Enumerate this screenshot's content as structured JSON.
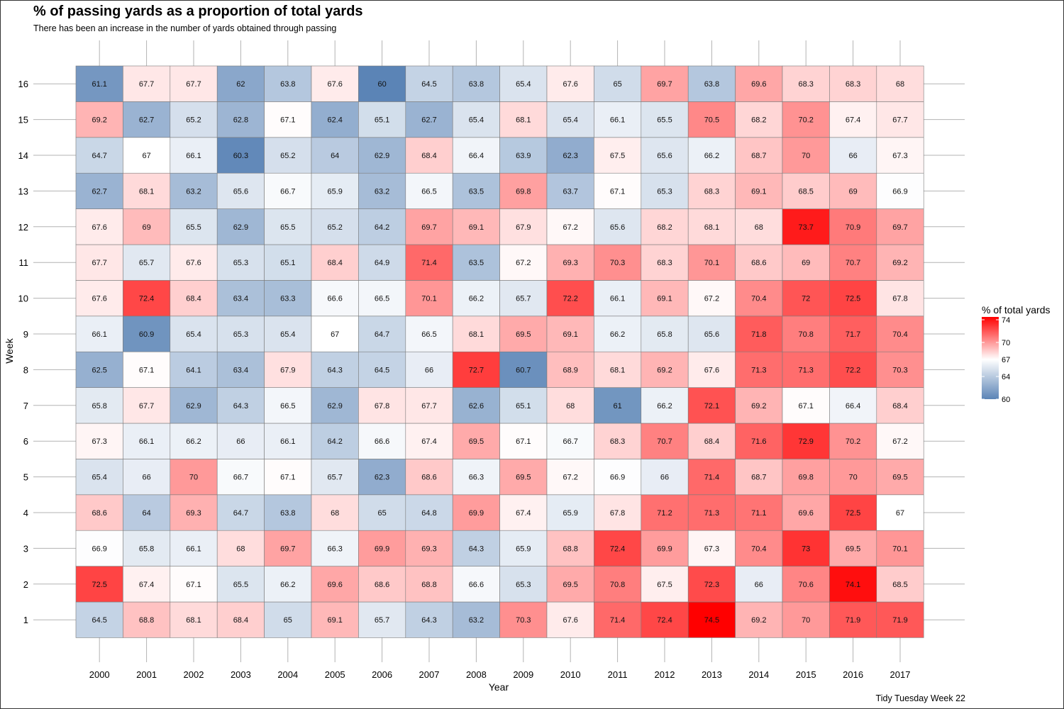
{
  "title": "% of passing yards as a proportion of total yards",
  "subtitle": "There has been an increase in the number of yards obtained through passing",
  "caption": "Tidy Tuesday Week 22",
  "chart_data": {
    "type": "heatmap",
    "title": "% of passing yards as a proportion of total yards",
    "subtitle": "There has been an increase in the number of yards obtained through passing",
    "xlabel": "Year",
    "ylabel": "Week",
    "x": [
      "2000",
      "2001",
      "2002",
      "2003",
      "2004",
      "2005",
      "2006",
      "2007",
      "2008",
      "2009",
      "2010",
      "2011",
      "2012",
      "2013",
      "2014",
      "2015",
      "2016",
      "2017"
    ],
    "y": [
      "1",
      "2",
      "3",
      "4",
      "5",
      "6",
      "7",
      "8",
      "9",
      "10",
      "11",
      "12",
      "13",
      "14",
      "15",
      "16"
    ],
    "values": [
      [
        64.5,
        68.8,
        68.1,
        68.4,
        65,
        69.1,
        65.7,
        64.3,
        63.2,
        70.3,
        67.6,
        71.4,
        72.4,
        74.5,
        69.2,
        70,
        71.9,
        71.9
      ],
      [
        72.5,
        67.4,
        67.1,
        65.5,
        66.2,
        69.6,
        68.6,
        68.8,
        66.6,
        65.3,
        69.5,
        70.8,
        67.5,
        72.3,
        66,
        70.6,
        74.1,
        68.5
      ],
      [
        66.9,
        65.8,
        66.1,
        68,
        69.7,
        66.3,
        69.9,
        69.3,
        64.3,
        65.9,
        68.8,
        72.4,
        69.9,
        67.3,
        70.4,
        73,
        69.5,
        70.1
      ],
      [
        68.6,
        64,
        69.3,
        64.7,
        63.8,
        68,
        65,
        64.8,
        69.9,
        67.4,
        65.9,
        67.8,
        71.2,
        71.3,
        71.1,
        69.6,
        72.5,
        67
      ],
      [
        65.4,
        66,
        70,
        66.7,
        67.1,
        65.7,
        62.3,
        68.6,
        66.3,
        69.5,
        67.2,
        66.9,
        66,
        71.4,
        68.7,
        69.8,
        70,
        69.5
      ],
      [
        67.3,
        66.1,
        66.2,
        66,
        66.1,
        64.2,
        66.6,
        67.4,
        69.5,
        67.1,
        66.7,
        68.3,
        70.7,
        68.4,
        71.6,
        72.9,
        70.2,
        67.2
      ],
      [
        65.8,
        67.7,
        62.9,
        64.3,
        66.5,
        62.9,
        67.8,
        67.7,
        62.6,
        65.1,
        68,
        61,
        66.2,
        72.1,
        69.2,
        67.1,
        66.4,
        68.4
      ],
      [
        62.5,
        67.1,
        64.1,
        63.4,
        67.9,
        64.3,
        64.5,
        66,
        72.7,
        60.7,
        68.9,
        68.1,
        69.2,
        67.6,
        71.3,
        71.3,
        72.2,
        70.3
      ],
      [
        66.1,
        60.9,
        65.4,
        65.3,
        65.4,
        67,
        64.7,
        66.5,
        68.1,
        69.5,
        69.1,
        66.2,
        65.8,
        65.6,
        71.8,
        70.8,
        71.7,
        70.4
      ],
      [
        67.6,
        72.4,
        68.4,
        63.4,
        63.3,
        66.6,
        66.5,
        70.1,
        66.2,
        65.7,
        72.2,
        66.1,
        69.1,
        67.2,
        70.4,
        72,
        72.5,
        67.8
      ],
      [
        67.7,
        65.7,
        67.6,
        65.3,
        65.1,
        68.4,
        64.9,
        71.4,
        63.5,
        67.2,
        69.3,
        70.3,
        68.3,
        70.1,
        68.6,
        69,
        70.7,
        69.2
      ],
      [
        67.6,
        69,
        65.5,
        62.9,
        65.5,
        65.2,
        64.2,
        69.7,
        69.1,
        67.9,
        67.2,
        65.6,
        68.2,
        68.1,
        68,
        73.7,
        70.9,
        69.7
      ],
      [
        62.7,
        68.1,
        63.2,
        65.6,
        66.7,
        65.9,
        63.2,
        66.5,
        63.5,
        69.8,
        63.7,
        67.1,
        65.3,
        68.3,
        69.1,
        68.5,
        69,
        66.9
      ],
      [
        64.7,
        67,
        66.1,
        60.3,
        65.2,
        64,
        62.9,
        68.4,
        66.4,
        63.9,
        62.3,
        67.5,
        65.6,
        66.2,
        68.7,
        70,
        66,
        67.3
      ],
      [
        69.2,
        62.7,
        65.2,
        62.8,
        67.1,
        62.4,
        65.1,
        62.7,
        65.4,
        68.1,
        65.4,
        66.1,
        65.5,
        70.5,
        68.2,
        70.2,
        67.4,
        67.7
      ],
      [
        61.1,
        67.7,
        67.7,
        62,
        63.8,
        67.6,
        60,
        64.5,
        63.8,
        65.4,
        67.6,
        65,
        69.7,
        63.8,
        69.6,
        68.3,
        68.3,
        68
      ]
    ],
    "legend": {
      "title": "% of total yards",
      "ticks": [
        60,
        64,
        67,
        70,
        74
      ],
      "range": [
        60,
        74.5
      ],
      "midpoint": 67,
      "low_color": "#5b84b6",
      "mid_color": "#ffffff",
      "high_color": "#ff0000",
      "placement": "right"
    },
    "grid": true
  }
}
